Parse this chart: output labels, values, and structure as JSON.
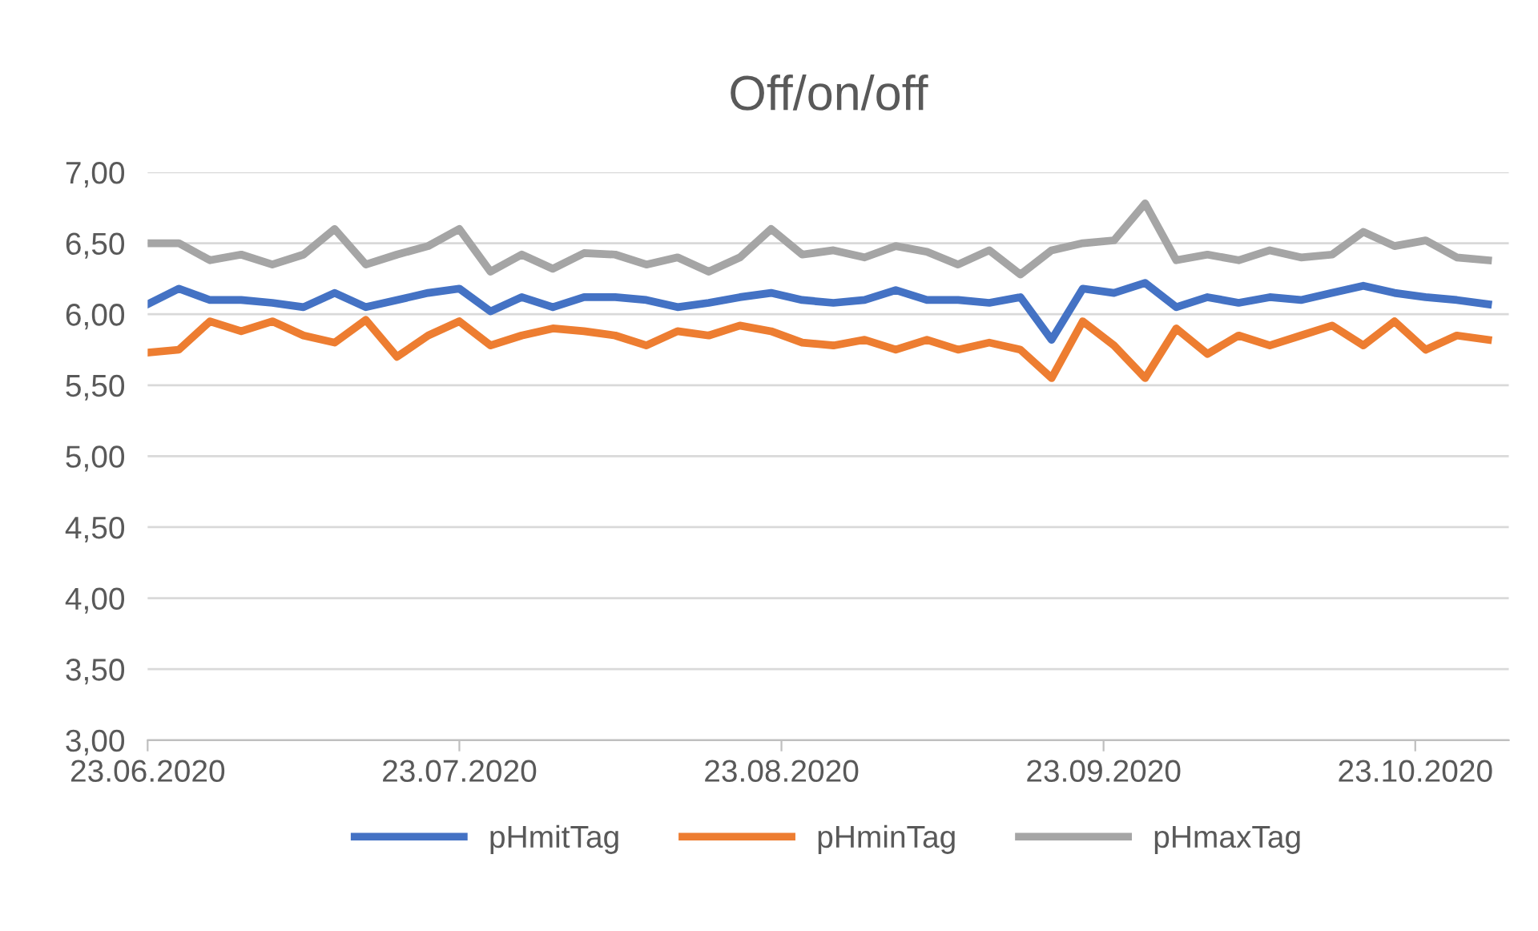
{
  "chart_data": {
    "type": "line",
    "title": "Off/on/off",
    "x": [
      "2020-06-23",
      "2020-06-26",
      "2020-06-29",
      "2020-07-02",
      "2020-07-05",
      "2020-07-08",
      "2020-07-11",
      "2020-07-14",
      "2020-07-17",
      "2020-07-20",
      "2020-07-23",
      "2020-07-26",
      "2020-07-29",
      "2020-08-01",
      "2020-08-04",
      "2020-08-07",
      "2020-08-10",
      "2020-08-13",
      "2020-08-16",
      "2020-08-19",
      "2020-08-22",
      "2020-08-25",
      "2020-08-28",
      "2020-08-31",
      "2020-09-03",
      "2020-09-06",
      "2020-09-09",
      "2020-09-12",
      "2020-09-15",
      "2020-09-18",
      "2020-09-21",
      "2020-09-24",
      "2020-09-27",
      "2020-09-30",
      "2020-10-03",
      "2020-10-06",
      "2020-10-09",
      "2020-10-12",
      "2020-10-15",
      "2020-10-18",
      "2020-10-21",
      "2020-10-24",
      "2020-10-27",
      "2020-10-30"
    ],
    "series": [
      {
        "name": "pHmitTag",
        "color": "#4472c4",
        "values": [
          6.07,
          6.18,
          6.1,
          6.1,
          6.08,
          6.05,
          6.15,
          6.05,
          6.1,
          6.15,
          6.18,
          6.02,
          6.12,
          6.05,
          6.12,
          6.12,
          6.1,
          6.05,
          6.08,
          6.12,
          6.15,
          6.1,
          6.08,
          6.1,
          6.17,
          6.1,
          6.1,
          6.08,
          6.12,
          5.82,
          6.18,
          6.15,
          6.22,
          6.05,
          6.12,
          6.08,
          6.12,
          6.1,
          6.15,
          6.2,
          6.15,
          6.12,
          6.1,
          6.07
        ]
      },
      {
        "name": "pHminTag",
        "color": "#ed7d31",
        "values": [
          5.73,
          5.75,
          5.95,
          5.88,
          5.95,
          5.85,
          5.8,
          5.96,
          5.7,
          5.85,
          5.95,
          5.78,
          5.85,
          5.9,
          5.88,
          5.85,
          5.78,
          5.88,
          5.85,
          5.92,
          5.88,
          5.8,
          5.78,
          5.82,
          5.75,
          5.82,
          5.75,
          5.8,
          5.75,
          5.55,
          5.95,
          5.78,
          5.55,
          5.9,
          5.72,
          5.85,
          5.78,
          5.85,
          5.92,
          5.78,
          5.95,
          5.75,
          5.85,
          5.82
        ]
      },
      {
        "name": "pHmaxTag",
        "color": "#a5a5a5",
        "values": [
          6.5,
          6.5,
          6.38,
          6.42,
          6.35,
          6.42,
          6.6,
          6.35,
          6.42,
          6.48,
          6.6,
          6.3,
          6.42,
          6.32,
          6.43,
          6.42,
          6.35,
          6.4,
          6.3,
          6.4,
          6.6,
          6.42,
          6.45,
          6.4,
          6.48,
          6.44,
          6.35,
          6.45,
          6.28,
          6.45,
          6.5,
          6.52,
          6.78,
          6.38,
          6.42,
          6.38,
          6.45,
          6.4,
          6.42,
          6.58,
          6.48,
          6.52,
          6.4,
          6.38
        ]
      }
    ],
    "xlim": [
      "2020-06-23",
      "2020-11-01"
    ],
    "xticks": [
      {
        "value": "2020-06-23",
        "label": "23.06.2020"
      },
      {
        "value": "2020-07-23",
        "label": "23.07.2020"
      },
      {
        "value": "2020-08-23",
        "label": "23.08.2020"
      },
      {
        "value": "2020-09-23",
        "label": "23.09.2020"
      },
      {
        "value": "2020-10-23",
        "label": "23.10.2020"
      }
    ],
    "ylim": [
      3,
      7
    ],
    "yticks": [
      {
        "value": 3,
        "label": "3,00"
      },
      {
        "value": 3.5,
        "label": "3,50"
      },
      {
        "value": 4,
        "label": "4,00"
      },
      {
        "value": 4.5,
        "label": "4,50"
      },
      {
        "value": 5,
        "label": "5,00"
      },
      {
        "value": 5.5,
        "label": "5,50"
      },
      {
        "value": 6,
        "label": "6,00"
      },
      {
        "value": 6.5,
        "label": "6,50"
      },
      {
        "value": 7,
        "label": "7,00"
      }
    ],
    "grid": "y",
    "legend": "bottom",
    "marker": "none",
    "line_style": "solid"
  }
}
